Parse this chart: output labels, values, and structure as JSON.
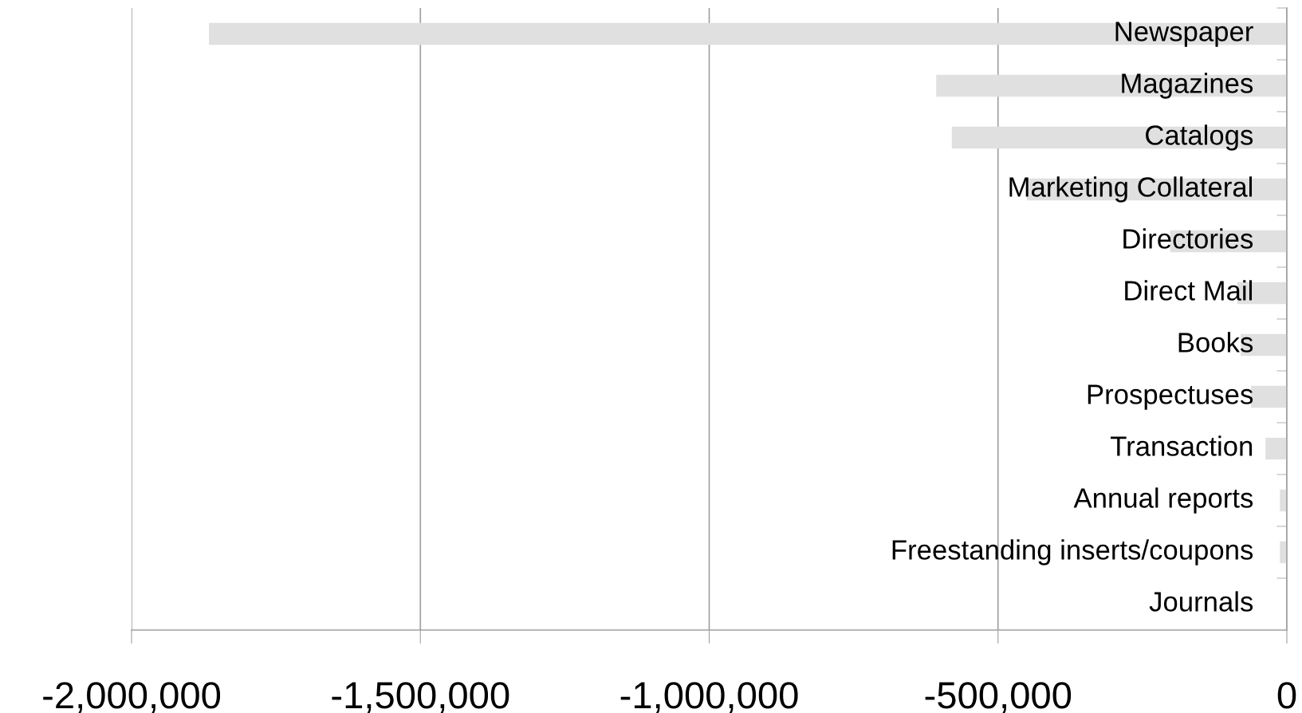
{
  "chart_data": {
    "type": "bar",
    "orientation": "horizontal",
    "categories": [
      "Newspaper",
      "Magazines",
      "Catalogs",
      "Marketing Collateral",
      "Directories",
      "Direct Mail",
      "Books",
      "Prospectuses",
      "Transaction",
      "Annual reports",
      "Freestanding inserts/coupons",
      "Journals"
    ],
    "values": [
      -1866000,
      -607000,
      -580000,
      -450000,
      -202000,
      -86000,
      -80000,
      -62000,
      -37000,
      -12000,
      -12000,
      null
    ],
    "color": "#e0e0e0",
    "xlim": [
      -2000000,
      0
    ],
    "xticks": [
      {
        "value": -2000000,
        "label": "-2,000,000"
      },
      {
        "value": -1500000,
        "label": "-1,500,000"
      },
      {
        "value": -1000000,
        "label": "-1,000,000"
      },
      {
        "value": -500000,
        "label": "-500,000"
      },
      0
    ],
    "grid": "x",
    "legend": false
  }
}
